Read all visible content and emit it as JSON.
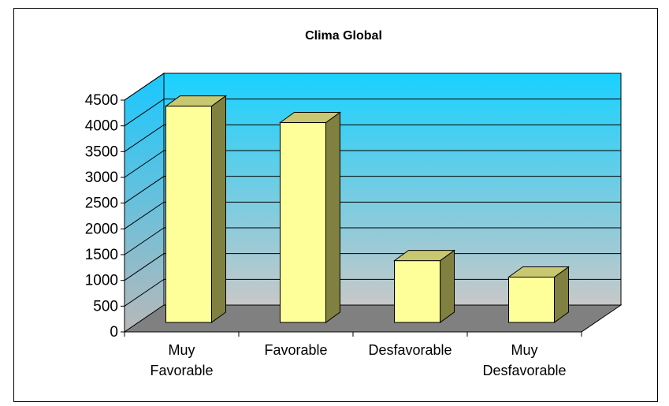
{
  "chart_data": {
    "type": "bar",
    "title": "Clima Global",
    "categories": [
      [
        "Muy",
        "Favorable"
      ],
      [
        "Favorable"
      ],
      [
        "Desfavorable"
      ],
      [
        "Muy",
        "Desfavorable"
      ]
    ],
    "values": [
      4200,
      3880,
      1200,
      880
    ],
    "ylim": [
      0,
      4500
    ],
    "yticks": [
      0,
      500,
      1000,
      1500,
      2000,
      2500,
      3000,
      3500,
      4000,
      4500
    ],
    "grid": true,
    "legend": "none"
  },
  "colors": {
    "bar_front": "#ffff99",
    "bar_side": "#808040",
    "bar_top": "#c8c870",
    "back_wall_top": "#19d1ff",
    "back_wall_bottom": "#c8c8c8",
    "floor": "#808080",
    "side_wall": "#5aa9d8"
  }
}
